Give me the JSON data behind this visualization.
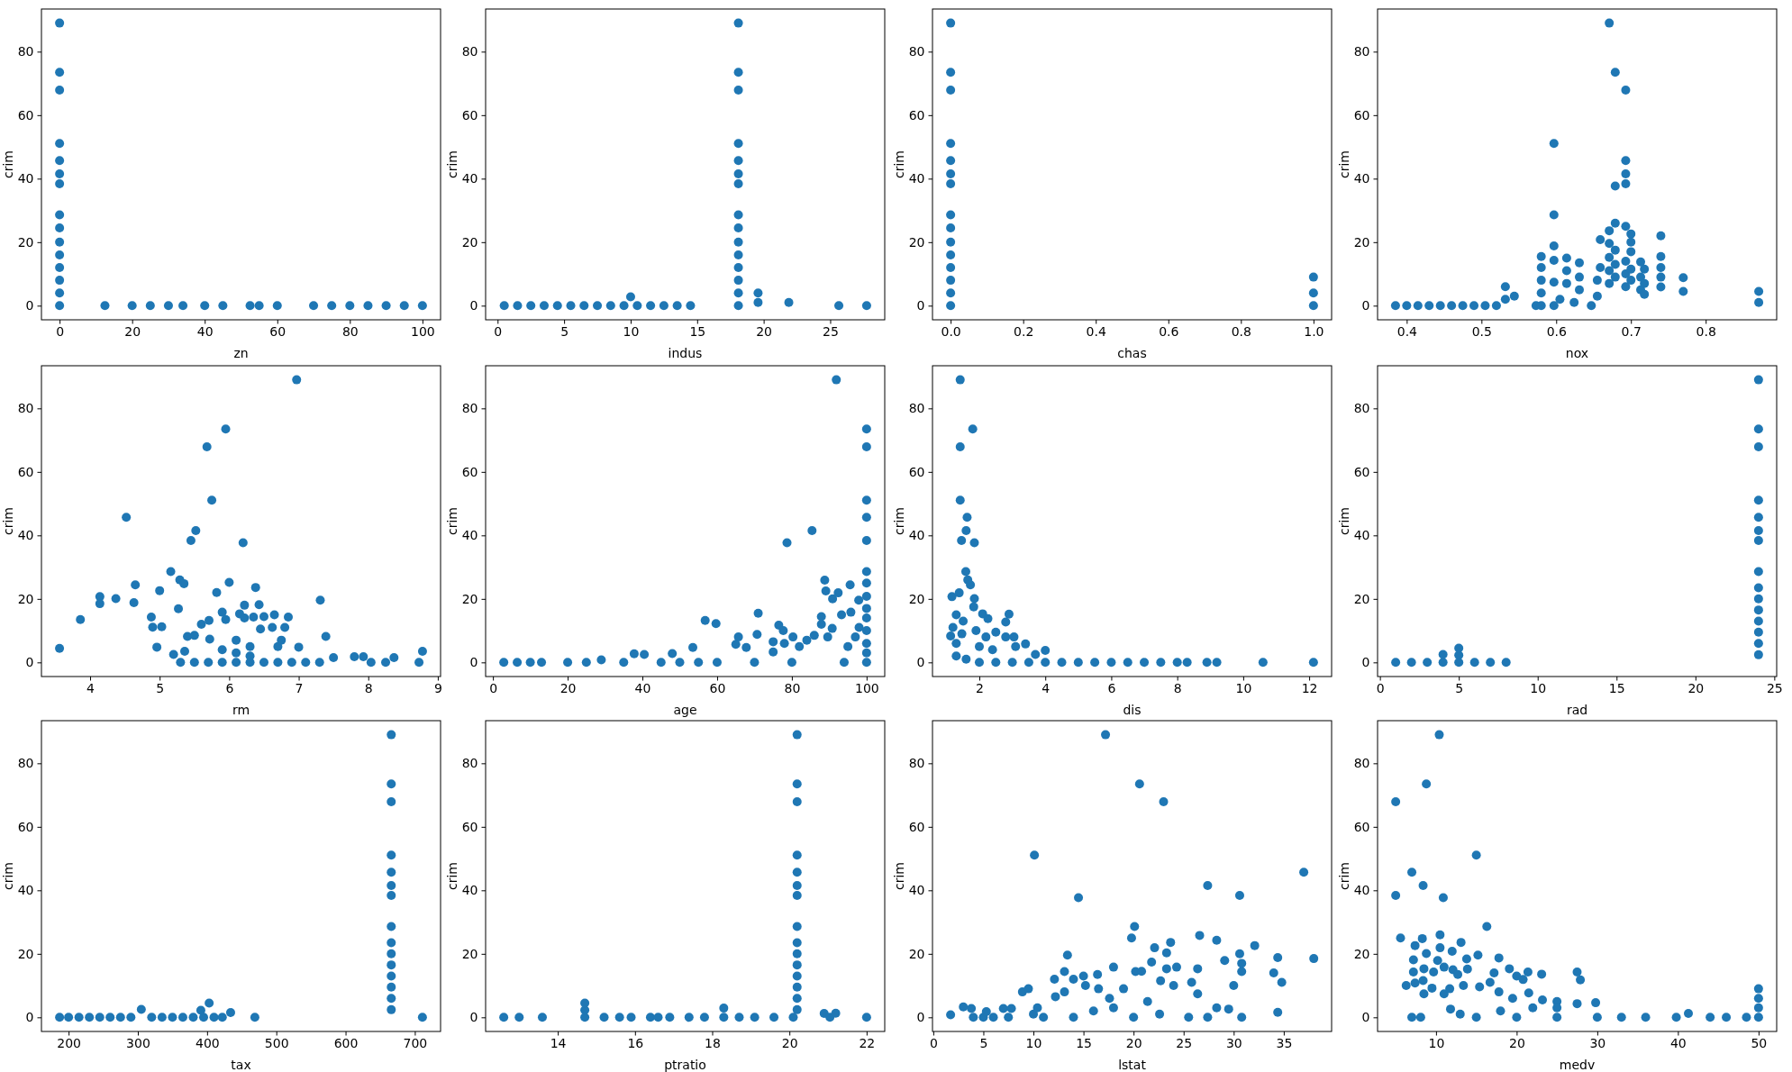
{
  "chart_data": [
    {
      "type": "scatter",
      "xlabel": "zn",
      "ylabel": "crim",
      "xlim": [
        -5,
        105
      ],
      "xticks": [
        0,
        20,
        40,
        60,
        80,
        100
      ],
      "ylim": [
        -4.45,
        93.43
      ],
      "yticks": [
        0,
        20,
        40,
        60,
        80
      ],
      "marker": "circle",
      "series": [
        {
          "color": "#1f77b4",
          "x": [
            0,
            0,
            0,
            0,
            0,
            0,
            0,
            0,
            0,
            0,
            0,
            0,
            0,
            0,
            0,
            12.5,
            20,
            25,
            30,
            34,
            40,
            45,
            52.5,
            55,
            60,
            70,
            75,
            80,
            85,
            90,
            95,
            100
          ],
          "values": [
            0,
            4,
            8,
            12,
            16,
            20,
            24.5,
            28.6,
            38.4,
            41.5,
            45.7,
            51.1,
            67.9,
            73.5,
            89,
            0,
            0,
            0,
            0,
            0,
            0,
            0,
            0,
            0,
            0,
            0,
            0,
            0,
            0,
            0,
            0,
            0
          ]
        }
      ]
    },
    {
      "type": "scatter",
      "xlabel": "indus",
      "ylabel": "crim",
      "xlim": [
        -0.9,
        29.1
      ],
      "xticks": [
        0,
        5,
        10,
        15,
        20,
        25
      ],
      "ylim": [
        -4.45,
        93.43
      ],
      "yticks": [
        0,
        20,
        40,
        60,
        80
      ],
      "marker": "circle",
      "series": [
        {
          "color": "#1f77b4",
          "x": [
            0.5,
            1.5,
            2.5,
            3.5,
            4.5,
            5.5,
            6.5,
            7.5,
            8.5,
            9.5,
            10,
            10.5,
            11.5,
            12.5,
            13.5,
            14.5,
            18.1,
            18.1,
            18.1,
            18.1,
            18.1,
            18.1,
            18.1,
            18.1,
            18.1,
            18.1,
            18.1,
            18.1,
            18.1,
            18.1,
            18.1,
            19.58,
            19.58,
            21.89,
            25.65,
            27.74
          ],
          "values": [
            0,
            0,
            0,
            0,
            0,
            0,
            0,
            0,
            0,
            0,
            2.8,
            0,
            0,
            0,
            0,
            0,
            0,
            4,
            8,
            12,
            16,
            20,
            24.5,
            28.6,
            38.4,
            41.5,
            45.7,
            51.1,
            67.9,
            73.5,
            89,
            1,
            4,
            1,
            0,
            0
          ]
        }
      ]
    },
    {
      "type": "scatter",
      "xlabel": "chas",
      "ylabel": "crim",
      "xlim": [
        -0.05,
        1.05
      ],
      "xticks": [
        {
          "value": 0,
          "label": "0.0"
        },
        {
          "value": 0.2,
          "label": "0.2"
        },
        {
          "value": 0.4,
          "label": "0.4"
        },
        {
          "value": 0.6,
          "label": "0.6"
        },
        {
          "value": 0.8,
          "label": "0.8"
        },
        {
          "value": 1,
          "label": "1.0"
        }
      ],
      "ylim": [
        -4.45,
        93.43
      ],
      "yticks": [
        0,
        20,
        40,
        60,
        80
      ],
      "marker": "circle",
      "series": [
        {
          "color": "#1f77b4",
          "x": [
            0,
            0,
            0,
            0,
            0,
            0,
            0,
            0,
            0,
            0,
            0,
            0,
            0,
            0,
            0,
            1,
            1,
            1
          ],
          "values": [
            0,
            4,
            8,
            12,
            16,
            20,
            24.5,
            28.6,
            38.4,
            41.5,
            45.7,
            51.1,
            67.9,
            73.5,
            89,
            0,
            4,
            9
          ]
        }
      ]
    },
    {
      "type": "scatter",
      "xlabel": "nox",
      "ylabel": "crim",
      "xlim": [
        0.361,
        0.895
      ],
      "xticks": [
        0.4,
        0.5,
        0.6,
        0.7,
        0.8
      ],
      "ylim": [
        -4.45,
        93.43
      ],
      "yticks": [
        0,
        20,
        40,
        60,
        80
      ],
      "marker": "circle",
      "series": [
        {
          "color": "#1f77b4",
          "x": [
            0.385,
            0.4,
            0.415,
            0.43,
            0.445,
            0.46,
            0.475,
            0.49,
            0.505,
            0.52,
            0.532,
            0.532,
            0.544,
            0.573,
            0.58,
            0.58,
            0.58,
            0.58,
            0.58,
            0.597,
            0.597,
            0.597,
            0.597,
            0.597,
            0.597,
            0.605,
            0.614,
            0.614,
            0.614,
            0.624,
            0.631,
            0.631,
            0.631,
            0.647,
            0.655,
            0.655,
            0.659,
            0.659,
            0.671,
            0.671,
            0.671,
            0.671,
            0.671,
            0.671,
            0.679,
            0.679,
            0.679,
            0.679,
            0.679,
            0.679,
            0.693,
            0.693,
            0.693,
            0.693,
            0.693,
            0.693,
            0.693,
            0.693,
            0.7,
            0.7,
            0.7,
            0.7,
            0.7,
            0.713,
            0.713,
            0.713,
            0.718,
            0.718,
            0.718,
            0.74,
            0.74,
            0.74,
            0.74,
            0.74,
            0.77,
            0.77,
            0.871,
            0.871
          ],
          "values": [
            0,
            0,
            0,
            0,
            0,
            0,
            0,
            0,
            0,
            0,
            6,
            2,
            3,
            0,
            15.5,
            12,
            8,
            4,
            0,
            51.1,
            28.6,
            18.8,
            14.3,
            7.4,
            0,
            2,
            15,
            11,
            7,
            1,
            13.5,
            9,
            5,
            0,
            8,
            3,
            20.8,
            12,
            89,
            23.6,
            19.6,
            15.2,
            11,
            7,
            73.5,
            37.7,
            26,
            17.5,
            13,
            9,
            67.9,
            45.7,
            41.5,
            38.4,
            25,
            14,
            10,
            6,
            22.6,
            20,
            17,
            11.5,
            8,
            13.8,
            9,
            5,
            11.5,
            7,
            3.6,
            22,
            15.5,
            12,
            9,
            5.9,
            8.8,
            4.5,
            4.5,
            1
          ]
        }
      ]
    },
    {
      "type": "scatter",
      "xlabel": "rm",
      "ylabel": "crim",
      "xlim": [
        3.3,
        9.04
      ],
      "xticks": [
        4,
        5,
        6,
        7,
        8,
        9
      ],
      "ylim": [
        -4.45,
        93.43
      ],
      "yticks": [
        0,
        20,
        40,
        60,
        80
      ],
      "marker": "circle",
      "series": [
        {
          "color": "#1f77b4",
          "x": [
            3.56,
            3.86,
            4.14,
            4.14,
            4.37,
            4.52,
            4.63,
            4.65,
            4.88,
            4.9,
            4.96,
            5,
            5.03,
            5.16,
            5.2,
            5.27,
            5.29,
            5.35,
            5.4,
            5.36,
            5.45,
            5.52,
            5.5,
            5.6,
            5.68,
            5.75,
            5.71,
            5.72,
            5.82,
            5.9,
            5.95,
            6,
            5.95,
            6.1,
            6.15,
            6.2,
            6.22,
            6.22,
            6.3,
            6.35,
            6.38,
            6.43,
            6.45,
            6.5,
            6.62,
            6.65,
            6.7,
            6.75,
            6.8,
            6.85,
            6.97,
            7,
            7.31,
            7.39,
            7.5,
            7.8,
            7.93,
            8.37,
            8.73,
            8.78,
            5.3,
            5.5,
            5.7,
            5.9,
            6.1,
            6.3,
            6.5,
            6.7,
            6.9,
            7.1,
            7.3,
            8.04,
            8.25,
            6.1,
            6.3,
            5.9
          ],
          "values": [
            4.4,
            13.5,
            20.7,
            18.5,
            20.1,
            45.7,
            18.8,
            24.4,
            14.3,
            11.1,
            4.8,
            22.6,
            11.2,
            28.6,
            2.5,
            16.9,
            26,
            24.8,
            8.2,
            3.5,
            38.4,
            41.5,
            8.5,
            12,
            67.9,
            51.1,
            13.2,
            7.3,
            22,
            15.8,
            73.5,
            25.2,
            13.5,
            7,
            15.3,
            37.7,
            18,
            14,
            5,
            14.3,
            23.6,
            18.2,
            10.5,
            14.4,
            11,
            15,
            5,
            7,
            11,
            14.3,
            89,
            4.8,
            19.6,
            8.2,
            1.5,
            1.8,
            1.8,
            1.5,
            0,
            3.5,
            0,
            0,
            0,
            0,
            0,
            0,
            0,
            0,
            0,
            0,
            0,
            0,
            0,
            3,
            2,
            4
          ]
        }
      ]
    },
    {
      "type": "scatter",
      "xlabel": "age",
      "ylabel": "crim",
      "xlim": [
        -1.96,
        104.86
      ],
      "xticks": [
        0,
        20,
        40,
        60,
        80,
        100
      ],
      "ylim": [
        -4.45,
        93.43
      ],
      "yticks": [
        0,
        20,
        40,
        60,
        80
      ],
      "marker": "circle",
      "series": [
        {
          "color": "#1f77b4",
          "x": [
            2.9,
            6.5,
            10,
            13,
            20,
            25,
            29,
            35,
            37.8,
            40.5,
            45,
            48,
            50,
            53.5,
            55,
            56.8,
            59.7,
            60,
            65,
            65.7,
            67.8,
            70,
            70.7,
            71,
            75,
            75,
            76.5,
            77.7,
            78,
            78.7,
            80,
            80.3,
            82,
            84,
            85.4,
            86,
            87.9,
            87.9,
            88.8,
            89.1,
            89.6,
            90.8,
            90.9,
            91.9,
            92.4,
            93.3,
            94,
            95,
            95.6,
            95.8,
            97,
            97.9,
            98,
            100,
            100,
            100,
            100,
            100,
            100,
            100,
            100,
            100,
            100,
            100,
            100,
            100,
            100
          ],
          "values": [
            0,
            0,
            0,
            0,
            0,
            0,
            0.8,
            0,
            2.7,
            2.5,
            0,
            2.8,
            0,
            4.7,
            0,
            13.2,
            12.2,
            0,
            5.7,
            8,
            4.7,
            0,
            8.8,
            15.5,
            6.5,
            3.3,
            11.7,
            10,
            6,
            37.7,
            0,
            8,
            5,
            7,
            41.5,
            8.5,
            14.4,
            12,
            25.9,
            22.5,
            8,
            10.7,
            20,
            89,
            21.9,
            15,
            0,
            5,
            24.4,
            15.8,
            8,
            19.6,
            11,
            73.5,
            67.9,
            51.1,
            45.7,
            38.4,
            28.6,
            25,
            20.8,
            17,
            14,
            10,
            6,
            3,
            0
          ]
        }
      ]
    },
    {
      "type": "scatter",
      "xlabel": "dis",
      "ylabel": "crim",
      "xlim": [
        0.58,
        12.68
      ],
      "xticks": [
        2,
        4,
        6,
        8,
        10,
        12
      ],
      "ylim": [
        -4.45,
        93.43
      ],
      "yticks": [
        0,
        20,
        40,
        60,
        80
      ],
      "marker": "circle",
      "series": [
        {
          "color": "#1f77b4",
          "x": [
            1.13,
            1.17,
            1.2,
            1.3,
            1.3,
            1.39,
            1.42,
            1.42,
            1.42,
            1.46,
            1.47,
            1.51,
            1.59,
            1.6,
            1.63,
            1.65,
            1.73,
            1.8,
            1.85,
            1.85,
            1.83,
            1.9,
            2.1,
            2,
            2.26,
            2.2,
            2.5,
            2.4,
            2.8,
            2.9,
            2.8,
            3.05,
            3.1,
            3.4,
            3.7,
            4,
            4.5,
            5,
            5.5,
            6,
            6.5,
            7,
            7.5,
            8,
            8.3,
            8.9,
            9.2,
            10.6,
            12.13,
            1.6,
            2,
            2.5,
            3,
            3.5,
            4,
            1.3
          ],
          "values": [
            8.3,
            20.7,
            11,
            6,
            15,
            21.9,
            89,
            67.9,
            51.1,
            38.4,
            9,
            13,
            28.6,
            41.5,
            45.7,
            26,
            24.4,
            73.5,
            37.7,
            20.1,
            17.5,
            10,
            15.3,
            5,
            13.8,
            8,
            9.5,
            4,
            12.7,
            15.2,
            8,
            8,
            5,
            5.8,
            2.5,
            3.8,
            0,
            0,
            0,
            0,
            0,
            0,
            0,
            0,
            0,
            0,
            0,
            0,
            0,
            1,
            0,
            0,
            0,
            0,
            0,
            2
          ]
        }
      ]
    },
    {
      "type": "scatter",
      "xlabel": "rad",
      "ylabel": "crim",
      "xlim": [
        -0.15,
        25.15
      ],
      "xticks": [
        0,
        5,
        10,
        15,
        20,
        25
      ],
      "ylim": [
        -4.45,
        93.43
      ],
      "yticks": [
        0,
        20,
        40,
        60,
        80
      ],
      "marker": "circle",
      "series": [
        {
          "color": "#1f77b4",
          "x": [
            1,
            2,
            3,
            4,
            4,
            5,
            5,
            5,
            6,
            7,
            8,
            24,
            24,
            24,
            24,
            24,
            24,
            24,
            24,
            24,
            24,
            24,
            24,
            24,
            24,
            24
          ],
          "values": [
            0,
            0,
            0,
            0,
            2.5,
            0,
            2.3,
            4.5,
            0,
            0,
            0,
            2.4,
            6,
            9.5,
            13,
            16.5,
            20,
            23.5,
            28.6,
            38.4,
            41.5,
            45.7,
            51.1,
            67.9,
            73.5,
            89
          ]
        }
      ]
    },
    {
      "type": "scatter",
      "xlabel": "tax",
      "ylabel": "crim",
      "xlim": [
        160.8,
        737.2
      ],
      "xticks": [
        200,
        300,
        400,
        500,
        600,
        700
      ],
      "ylim": [
        -4.45,
        93.43
      ],
      "yticks": [
        0,
        20,
        40,
        60,
        80
      ],
      "marker": "circle",
      "series": [
        {
          "color": "#1f77b4",
          "x": [
            187,
            200,
            215,
            230,
            245,
            260,
            275,
            290,
            320,
            335,
            350,
            365,
            380,
            395,
            410,
            422,
            469,
            711,
            305,
            403,
            391,
            434,
            666,
            666,
            666,
            666,
            666,
            666,
            666,
            666,
            666,
            666,
            666,
            666,
            666,
            666,
            666
          ],
          "values": [
            0,
            0,
            0,
            0,
            0,
            0,
            0,
            0,
            0,
            0,
            0,
            0,
            0,
            0,
            0,
            0,
            0,
            0,
            2.5,
            4.5,
            2.2,
            1.5,
            2.4,
            6,
            9.5,
            13,
            16.5,
            20,
            23.5,
            28.6,
            38.4,
            41.5,
            45.7,
            51.1,
            67.9,
            73.5,
            89
          ]
        }
      ]
    },
    {
      "type": "scatter",
      "xlabel": "ptratio",
      "ylabel": "crim",
      "xlim": [
        12.13,
        22.47
      ],
      "xticks": [
        14,
        16,
        18,
        20,
        22
      ],
      "ylim": [
        -4.45,
        93.43
      ],
      "yticks": [
        0,
        20,
        40,
        60,
        80
      ],
      "marker": "circle",
      "series": [
        {
          "color": "#1f77b4",
          "x": [
            12.6,
            13,
            13.6,
            14.7,
            14.7,
            14.7,
            15.2,
            15.6,
            15.9,
            16.4,
            16.6,
            16.9,
            17.4,
            17.8,
            18.3,
            18.3,
            18.7,
            19.1,
            19.6,
            20.1,
            20.2,
            20.2,
            20.2,
            20.2,
            20.2,
            20.2,
            20.2,
            20.2,
            20.2,
            20.2,
            20.2,
            20.2,
            20.2,
            20.2,
            20.2,
            20.9,
            21.05,
            21.2,
            22
          ],
          "values": [
            0,
            0,
            0,
            0,
            2.3,
            4.5,
            0,
            0,
            0,
            0,
            0,
            0,
            0,
            0,
            0,
            2.9,
            0,
            0,
            0,
            0,
            2.4,
            6,
            9.5,
            13,
            16.5,
            20,
            23.5,
            28.6,
            38.4,
            41.5,
            45.7,
            51.1,
            67.9,
            73.5,
            89,
            1.2,
            0,
            1.3,
            0
          ]
        }
      ]
    },
    {
      "type": "scatter",
      "xlabel": "lstat",
      "ylabel": "crim",
      "xlim": [
        -0.08,
        39.78
      ],
      "xticks": [
        0,
        5,
        10,
        15,
        20,
        25,
        30,
        35
      ],
      "ylim": [
        -4.45,
        93.43
      ],
      "yticks": [
        0,
        20,
        40,
        60,
        80
      ],
      "marker": "circle",
      "series": [
        {
          "color": "#1f77b4",
          "x": [
            1.73,
            3,
            3.8,
            4,
            5,
            5.3,
            6,
            7,
            7.8,
            7.5,
            8.9,
            9.5,
            10,
            10.1,
            10.4,
            11,
            12.1,
            12.2,
            13.1,
            13.1,
            13.4,
            14,
            14.5,
            15,
            15.2,
            16.4,
            16.5,
            17.2,
            17.6,
            18,
            19,
            19.8,
            20.1,
            20.2,
            20.6,
            20.8,
            21.4,
            21.8,
            22.1,
            22.7,
            23,
            23.3,
            23.3,
            23.7,
            24,
            24.3,
            25.5,
            25.8,
            26.4,
            26.4,
            26.6,
            27.4,
            27.4,
            28.3,
            28.3,
            29.1,
            29.5,
            30,
            30.6,
            30.6,
            30.8,
            30.8,
            30.8,
            32.1,
            34,
            34.4,
            34.4,
            34.8,
            37,
            38,
            14,
            16,
            18,
            20,
            22.6
          ],
          "values": [
            0.8,
            3.3,
            2.8,
            0,
            0,
            1.8,
            0,
            2.8,
            2.8,
            0,
            8,
            9,
            1,
            51.1,
            3,
            0,
            12,
            6.5,
            14.4,
            8,
            19.6,
            12,
            37.7,
            13,
            10,
            13.5,
            9,
            89,
            6,
            15.8,
            9,
            25,
            28.6,
            14.4,
            73.5,
            14.5,
            5,
            17.4,
            21.9,
            11.5,
            67.9,
            15.3,
            20.3,
            23.6,
            10,
            15.8,
            0,
            11,
            7.4,
            15.3,
            25.8,
            41.5,
            0,
            24.3,
            3,
            17.9,
            2.6,
            10,
            38.4,
            20,
            17,
            14.4,
            0,
            22.6,
            14,
            18.8,
            1.6,
            11,
            45.7,
            18.5,
            0,
            2,
            3,
            0,
            1
          ]
        }
      ]
    },
    {
      "type": "scatter",
      "xlabel": "medv",
      "ylabel": "crim",
      "xlim": [
        2.75,
        52.25
      ],
      "xticks": [
        10,
        20,
        30,
        40,
        50
      ],
      "ylim": [
        -4.45,
        93.43
      ],
      "yticks": [
        0,
        20,
        40,
        60,
        80
      ],
      "marker": "circle",
      "series": [
        {
          "color": "#1f77b4",
          "x": [
            5,
            5,
            5.6,
            6.3,
            7,
            7,
            7.2,
            7.2,
            7.4,
            7.4,
            8.1,
            8.3,
            8.4,
            8.5,
            8.4,
            8.5,
            8.8,
            8.8,
            9.5,
            9.7,
            10.2,
            10.4,
            10.5,
            10.5,
            10.9,
            11,
            11,
            11.7,
            11.8,
            12,
            12.1,
            12.7,
            13.1,
            13.4,
            13.8,
            13.9,
            15,
            15.2,
            15.4,
            16.3,
            16.7,
            17.2,
            17.8,
            17.8,
            19.1,
            19.5,
            20,
            20.8,
            21.4,
            21.5,
            23.1,
            23.2,
            25,
            25,
            27.5,
            27.9,
            27.5,
            29.8,
            15,
            20,
            25,
            30,
            33,
            36,
            39.8,
            41.3,
            44,
            46,
            48.5,
            50,
            50,
            50,
            50,
            13,
            18,
            22
          ],
          "values": [
            67.9,
            38.4,
            25,
            10,
            45.7,
            0,
            18.1,
            14.3,
            22.6,
            10.8,
            0,
            24.8,
            41.5,
            15.3,
            11.6,
            7.4,
            73.5,
            20.1,
            9.2,
            14.3,
            17.9,
            89,
            26,
            21.9,
            37.7,
            15.8,
            7.4,
            9,
            2.6,
            20.8,
            15,
            13.5,
            23.6,
            10,
            18.4,
            15.2,
            51.1,
            19.6,
            9.6,
            28.6,
            11,
            14,
            18.7,
            8,
            15.3,
            6,
            13,
            11.9,
            14.3,
            7.7,
            13.6,
            5.5,
            5,
            3,
            14.3,
            11.8,
            4.3,
            4.6,
            0,
            0,
            0,
            0,
            0,
            0,
            0,
            1.2,
            0,
            0,
            0,
            9,
            6,
            3,
            0,
            1,
            2,
            3
          ]
        }
      ]
    }
  ]
}
